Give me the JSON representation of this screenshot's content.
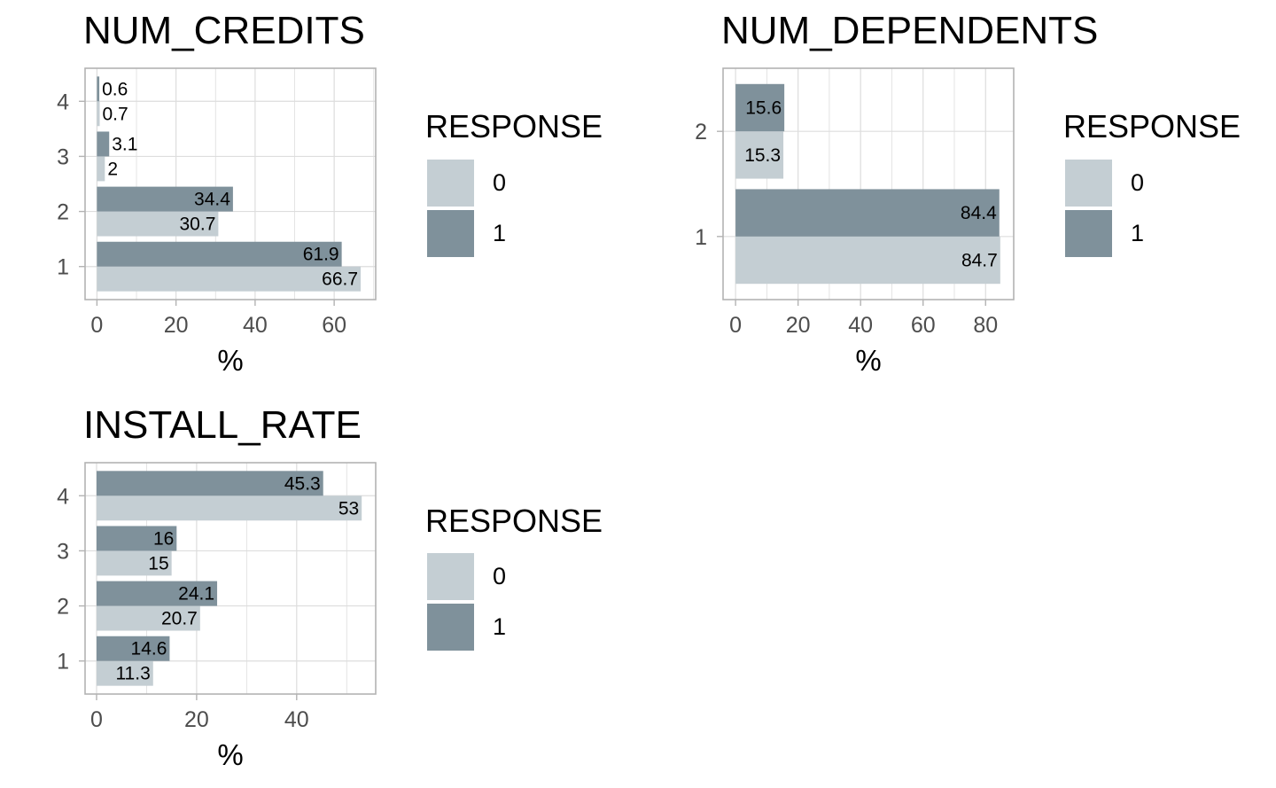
{
  "colors": {
    "response_0": "#c4ced3",
    "response_1": "#7f919b",
    "grid": "#dddddd",
    "frame": "#b3b3b3",
    "tick_text": "#4d4d4d",
    "text": "#000000"
  },
  "chart_data": [
    {
      "type": "bar",
      "orientation": "horizontal",
      "title": "NUM_CREDITS",
      "xlabel": "%",
      "ylabel": "",
      "categories": [
        "1",
        "2",
        "3",
        "4"
      ],
      "series": [
        {
          "name": "0",
          "values": [
            66.7,
            30.7,
            2,
            0.7
          ]
        },
        {
          "name": "1",
          "values": [
            61.9,
            34.4,
            3.1,
            0.6
          ]
        }
      ],
      "data_labels": [
        [
          "66.7",
          "30.7",
          "2",
          "0.7"
        ],
        [
          "61.9",
          "34.4",
          "3.1",
          "0.6"
        ]
      ],
      "xlim": [
        -3,
        70.5
      ],
      "xticks": [
        0,
        20,
        40,
        60
      ],
      "xgrid_minor": [
        10,
        30,
        50,
        70
      ],
      "legend": {
        "title": "RESPONSE",
        "position": "right",
        "labels": [
          "0",
          "1"
        ]
      },
      "grid": true
    },
    {
      "type": "bar",
      "orientation": "horizontal",
      "title": "NUM_DEPENDENTS",
      "xlabel": "%",
      "ylabel": "",
      "categories": [
        "1",
        "2"
      ],
      "series": [
        {
          "name": "0",
          "values": [
            84.7,
            15.3
          ]
        },
        {
          "name": "1",
          "values": [
            84.4,
            15.6
          ]
        }
      ],
      "data_labels": [
        [
          "84.7",
          "15.3"
        ],
        [
          "84.4",
          "15.6"
        ]
      ],
      "xlim": [
        -4,
        89
      ],
      "xticks": [
        0,
        20,
        40,
        60,
        80
      ],
      "xgrid_minor": [
        10,
        30,
        50,
        70
      ],
      "legend": {
        "title": "RESPONSE",
        "position": "right",
        "labels": [
          "0",
          "1"
        ]
      },
      "grid": true
    },
    {
      "type": "bar",
      "orientation": "horizontal",
      "title": "INSTALL_RATE",
      "xlabel": "%",
      "ylabel": "",
      "categories": [
        "1",
        "2",
        "3",
        "4"
      ],
      "series": [
        {
          "name": "0",
          "values": [
            11.3,
            20.7,
            15,
            53
          ]
        },
        {
          "name": "1",
          "values": [
            14.6,
            24.1,
            16,
            45.3
          ]
        }
      ],
      "data_labels": [
        [
          "11.3",
          "20.7",
          "15",
          "53"
        ],
        [
          "14.6",
          "24.1",
          "16",
          "45.3"
        ]
      ],
      "xlim": [
        -2.3,
        55.8
      ],
      "xticks": [
        0,
        20,
        40
      ],
      "xgrid_minor": [
        10,
        30,
        50
      ],
      "legend": {
        "title": "RESPONSE",
        "position": "right",
        "labels": [
          "0",
          "1"
        ]
      },
      "grid": true
    }
  ]
}
